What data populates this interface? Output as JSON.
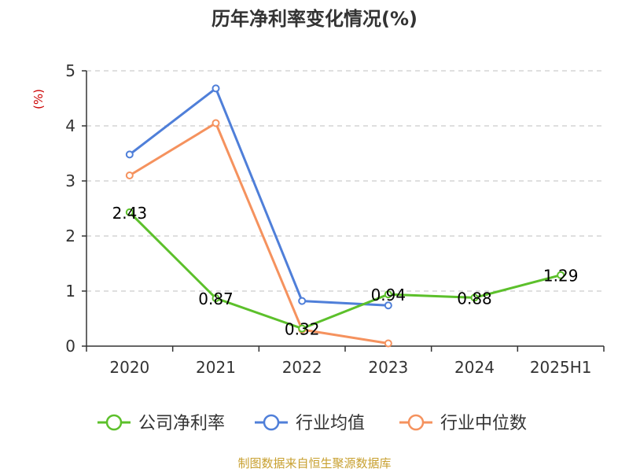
{
  "chart_data": {
    "type": "line",
    "title": "历年净利率变化情况(%)",
    "ylabel": "(%)",
    "xlabel": "",
    "categories": [
      "2020",
      "2021",
      "2022",
      "2023",
      "2024",
      "2025H1"
    ],
    "ylim": [
      0,
      5
    ],
    "yticks": [
      0,
      1,
      2,
      3,
      4,
      5
    ],
    "grid": true,
    "legend_position": "bottom",
    "series": [
      {
        "name": "公司净利率",
        "color": "#5cc02b",
        "show_labels": true,
        "values": [
          2.43,
          0.87,
          0.32,
          0.94,
          0.88,
          1.29
        ]
      },
      {
        "name": "行业均值",
        "color": "#4f7fd9",
        "show_labels": false,
        "values": [
          3.48,
          4.68,
          0.82,
          0.74,
          null,
          null
        ]
      },
      {
        "name": "行业中位数",
        "color": "#f5925e",
        "show_labels": false,
        "values": [
          3.1,
          4.05,
          0.3,
          0.05,
          null,
          null
        ]
      }
    ],
    "unit_color": "#cc0000",
    "source": "制图数据来自恒生聚源数据库",
    "source_color": "#c8a030"
  }
}
